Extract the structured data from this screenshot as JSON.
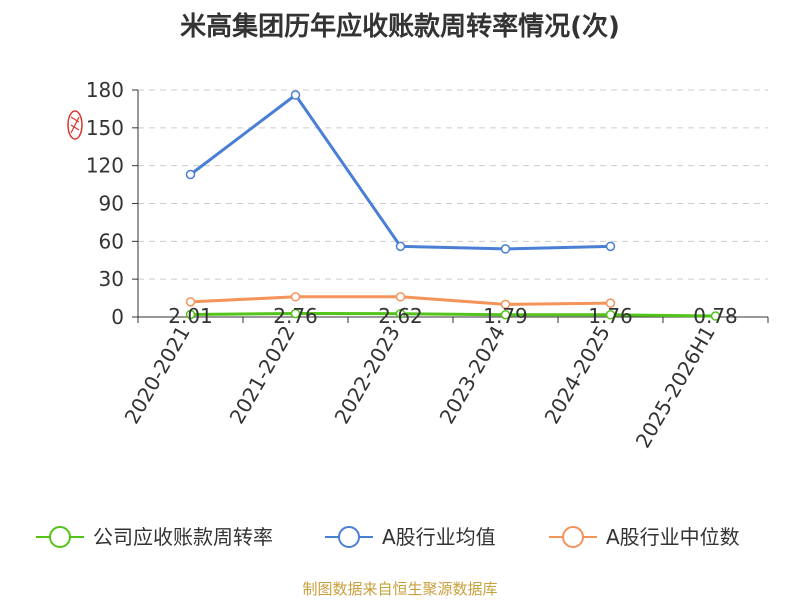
{
  "chart_data": {
    "type": "line",
    "title": "米高集团历年应收账款周转率情况(次)",
    "categories": [
      "2020-2021",
      "2021-2022",
      "2022-2023",
      "2023-2024",
      "2024-2025",
      "2025-2026H1"
    ],
    "ylim": [
      0,
      180
    ],
    "yticks": [
      0,
      30,
      60,
      90,
      120,
      150,
      180
    ],
    "grid": true,
    "legend_position": "bottom",
    "series": [
      {
        "name": "公司应收账款周转率",
        "color": "#52c41a",
        "values": [
          2.01,
          2.76,
          2.62,
          1.79,
          1.76,
          0.78
        ],
        "labels": [
          "2.01",
          "2.76",
          "2.62",
          "1.79",
          "1.76",
          "0.78"
        ]
      },
      {
        "name": "A股行业均值",
        "color": "#4a7fd6",
        "values": [
          113,
          176,
          56,
          54,
          56,
          null
        ]
      },
      {
        "name": "A股行业中位数",
        "color": "#f4935a",
        "values": [
          12,
          16,
          16,
          10,
          11,
          null
        ]
      }
    ]
  },
  "footer": {
    "source": "制图数据来自恒生聚源数据库"
  }
}
